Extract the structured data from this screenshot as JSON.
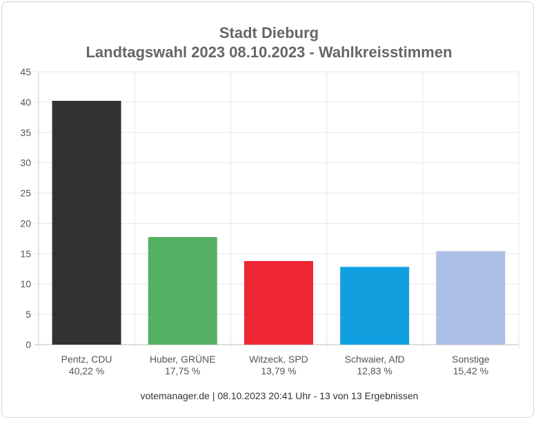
{
  "chart_data": {
    "type": "bar",
    "title": "Stadt Dieburg",
    "subtitle": "Landtagswahl 2023 08.10.2023  - Wahlkreisstimmen",
    "categories": [
      "Pentz, CDU",
      "Huber, GRÜNE",
      "Witzeck, SPD",
      "Schwaier, AfD",
      "Sonstige"
    ],
    "value_labels": [
      "40,22 %",
      "17,75 %",
      "13,79 %",
      "12,83 %",
      "15,42 %"
    ],
    "values": [
      40.22,
      17.75,
      13.79,
      12.83,
      15.42
    ],
    "colors": [
      "#333132",
      "#55b064",
      "#ee2632",
      "#129fe0",
      "#adbfe4"
    ],
    "ylim": [
      0,
      45
    ],
    "yticks": [
      "0",
      "5",
      "10",
      "15",
      "20",
      "25",
      "30",
      "35",
      "40",
      "45"
    ],
    "xlabel": "",
    "ylabel": "",
    "grid": true,
    "legend": "none"
  },
  "footer": {
    "source": "votemanager.de",
    "separator": " | ",
    "timestamp": "08.10.2023 20:41 Uhr",
    "status": " - 13 von 13 Ergebnissen"
  }
}
